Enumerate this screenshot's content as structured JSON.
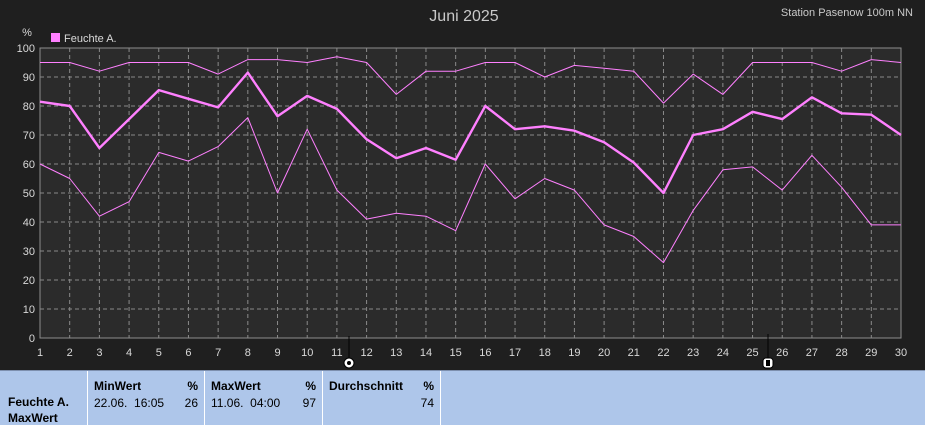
{
  "chart_data": {
    "type": "line",
    "title": "Juni 2025",
    "station": "Station Pasenow 100m NN",
    "ylabel": "%",
    "ylim": [
      0,
      100
    ],
    "yticks": [
      0,
      10,
      20,
      30,
      40,
      50,
      60,
      70,
      80,
      90,
      100
    ],
    "x": [
      1,
      2,
      3,
      4,
      5,
      6,
      7,
      8,
      9,
      10,
      11,
      12,
      13,
      14,
      15,
      16,
      17,
      18,
      19,
      20,
      21,
      22,
      23,
      24,
      25,
      26,
      27,
      28,
      29,
      30
    ],
    "legend": "Feuchte A.",
    "color": "#ff80ff",
    "series": [
      {
        "key": "max",
        "values": [
          95,
          95,
          92,
          95,
          95,
          95,
          91,
          96,
          96,
          95,
          97,
          95,
          84,
          92,
          92,
          95,
          95,
          90,
          94,
          93,
          92,
          81,
          91,
          84,
          95,
          95,
          95,
          92,
          96,
          95
        ]
      },
      {
        "key": "avg",
        "values": [
          81.5,
          80,
          65.5,
          75.5,
          85.5,
          82.5,
          79.5,
          91.5,
          76.5,
          83.5,
          79,
          68.5,
          62,
          65.5,
          61.5,
          80,
          72,
          73,
          71.5,
          67.5,
          60.5,
          50,
          70,
          72,
          78,
          75.5,
          83,
          77.5,
          77,
          70
        ]
      },
      {
        "key": "min",
        "values": [
          60,
          55,
          42,
          47,
          64,
          61,
          66,
          76,
          50,
          72,
          51,
          41,
          43,
          42,
          37,
          60,
          48,
          55,
          51,
          39,
          35,
          26,
          44,
          58,
          59,
          51,
          63,
          52,
          39,
          39
        ]
      }
    ],
    "grid": true
  },
  "stats": {
    "series_name": "Feuchte A.",
    "series_sub": "MaxWert",
    "min_label": "MinWert",
    "min_when": "22.06.  16:05",
    "min_value": "26",
    "max_label": "MaxWert",
    "max_when": "11.06.  04:00",
    "max_value": "97",
    "avg_label": "Durchschnitt",
    "avg_value": "74",
    "unit": "%"
  }
}
